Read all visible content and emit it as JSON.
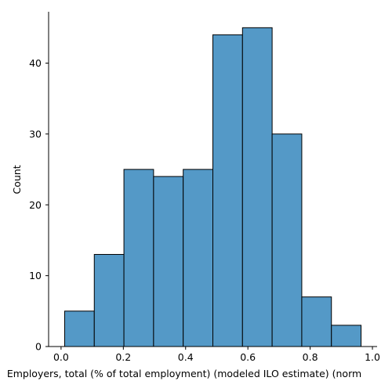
{
  "chart_data": {
    "type": "bar",
    "title": "",
    "xlabel": "Employers, total (% of total employment) (modeled ILO estimate) (norm",
    "ylabel": "Count",
    "bin_edges": [
      0.0115,
      0.1067,
      0.2019,
      0.2971,
      0.3923,
      0.4875,
      0.5827,
      0.6779,
      0.7731,
      0.8683,
      0.9635
    ],
    "values": [
      5,
      13,
      25,
      24,
      25,
      44,
      45,
      30,
      7,
      3
    ],
    "xlim": [
      -0.04,
      1.015
    ],
    "ylim": [
      0,
      47.25
    ],
    "x_ticks": [
      0.0,
      0.2,
      0.4,
      0.6,
      0.8,
      1.0
    ],
    "x_tick_labels": [
      "0.0",
      "0.2",
      "0.4",
      "0.6",
      "0.8",
      "1.0"
    ],
    "y_ticks": [
      0,
      10,
      20,
      30,
      40
    ],
    "y_tick_labels": [
      "0",
      "10",
      "20",
      "30",
      "40"
    ],
    "bar_color": "#5499c7",
    "edge_color": "#000000",
    "grid": false,
    "legend": "none"
  }
}
